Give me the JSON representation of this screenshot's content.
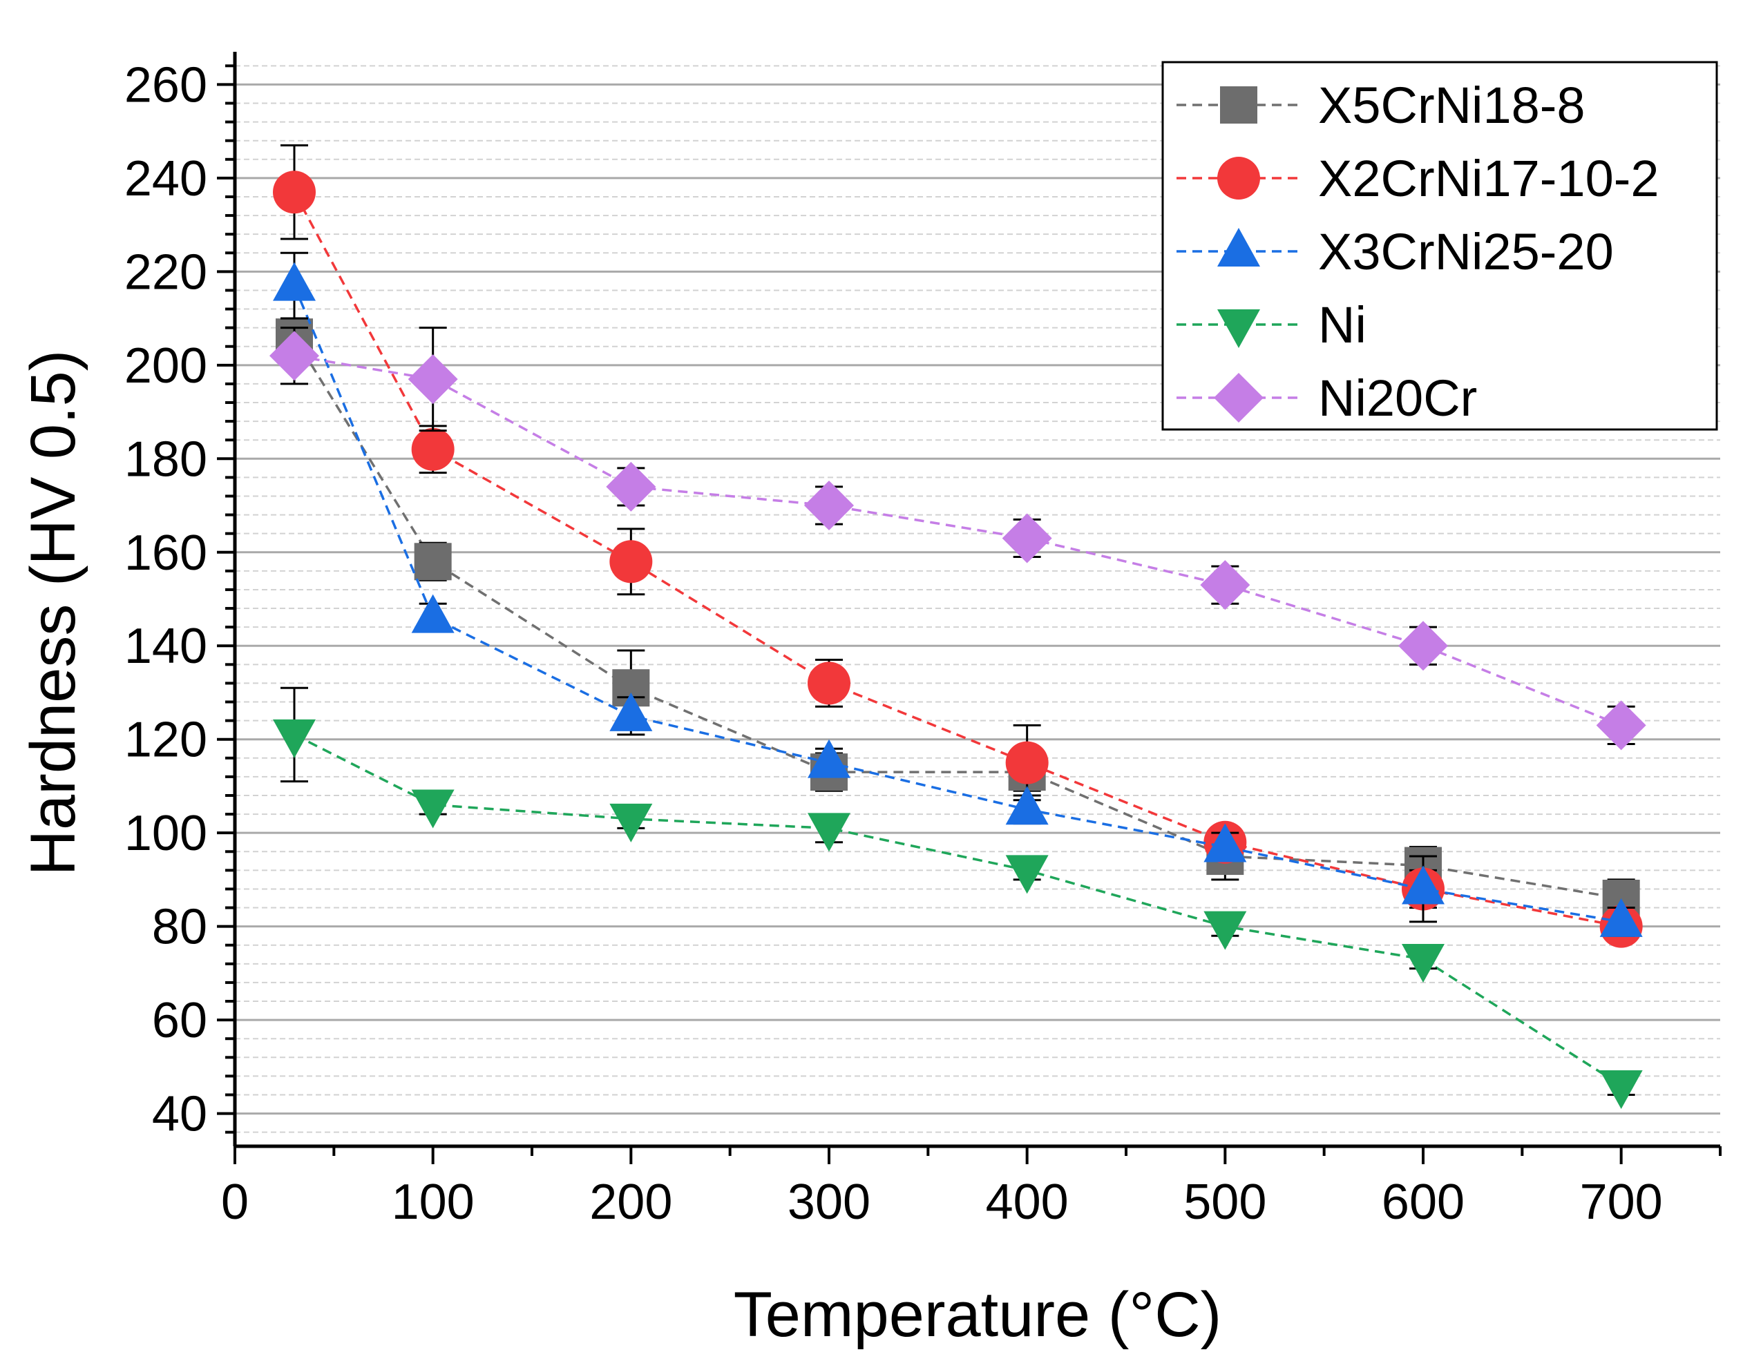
{
  "chart_data": {
    "type": "scatter",
    "title": "",
    "xlabel": "Temperature (°C)",
    "ylabel": "Hardness (HV 0.5)",
    "xlim": [
      0,
      750
    ],
    "ylim": [
      33,
      267
    ],
    "xticks": [
      0,
      100,
      200,
      300,
      400,
      500,
      600,
      700
    ],
    "xtick_labels": [
      "0",
      "100",
      "200",
      "300",
      "400",
      "500",
      "600",
      "700"
    ],
    "yticks": [
      40,
      60,
      80,
      100,
      120,
      140,
      160,
      180,
      200,
      220,
      240,
      260
    ],
    "ytick_labels": [
      "40",
      "60",
      "80",
      "100",
      "120",
      "140",
      "160",
      "180",
      "200",
      "220",
      "240",
      "260"
    ],
    "grid": true,
    "legend_position": "top-right",
    "series": [
      {
        "name": "X5CrNi18-8",
        "marker": "square",
        "color": "#6d6d6d",
        "line_color": "#707070",
        "x": [
          30,
          100,
          200,
          300,
          400,
          500,
          600,
          700
        ],
        "y": [
          206,
          158,
          131,
          113,
          113,
          95,
          93,
          86
        ],
        "err": [
          4,
          4,
          8,
          4,
          4,
          5,
          4,
          4
        ]
      },
      {
        "name": "X2CrNi17-10-2",
        "marker": "circle",
        "color": "#f2383a",
        "line_color": "#f2383a",
        "x": [
          30,
          100,
          200,
          300,
          400,
          500,
          600,
          700
        ],
        "y": [
          237,
          182,
          158,
          132,
          115,
          98,
          88,
          80
        ],
        "err": [
          10,
          5,
          7,
          5,
          8,
          3,
          4,
          3
        ]
      },
      {
        "name": "X3CrNi25-20",
        "marker": "triangle-up",
        "color": "#1a6ee3",
        "line_color": "#1a6ee3",
        "x": [
          30,
          100,
          200,
          300,
          400,
          500,
          600,
          700
        ],
        "y": [
          217,
          146,
          125,
          115,
          105,
          97,
          88,
          81
        ],
        "err": [
          7,
          3,
          4,
          3,
          3,
          3,
          7,
          3
        ]
      },
      {
        "name": "Ni",
        "marker": "triangle-down",
        "color": "#1fa65a",
        "line_color": "#1fa65a",
        "x": [
          30,
          100,
          200,
          300,
          400,
          500,
          600,
          700
        ],
        "y": [
          121,
          106,
          103,
          101,
          92,
          80,
          73,
          46
        ],
        "err": [
          10,
          2,
          2,
          3,
          2,
          2,
          2,
          2
        ]
      },
      {
        "name": "Ni20Cr",
        "marker": "diamond",
        "color": "#c57ee6",
        "line_color": "#c57ee6",
        "x": [
          30,
          100,
          200,
          300,
          400,
          500,
          600,
          700
        ],
        "y": [
          202,
          197,
          174,
          170,
          163,
          153,
          140,
          123
        ],
        "err": [
          6,
          11,
          4,
          4,
          4,
          4,
          4,
          4
        ]
      }
    ]
  }
}
